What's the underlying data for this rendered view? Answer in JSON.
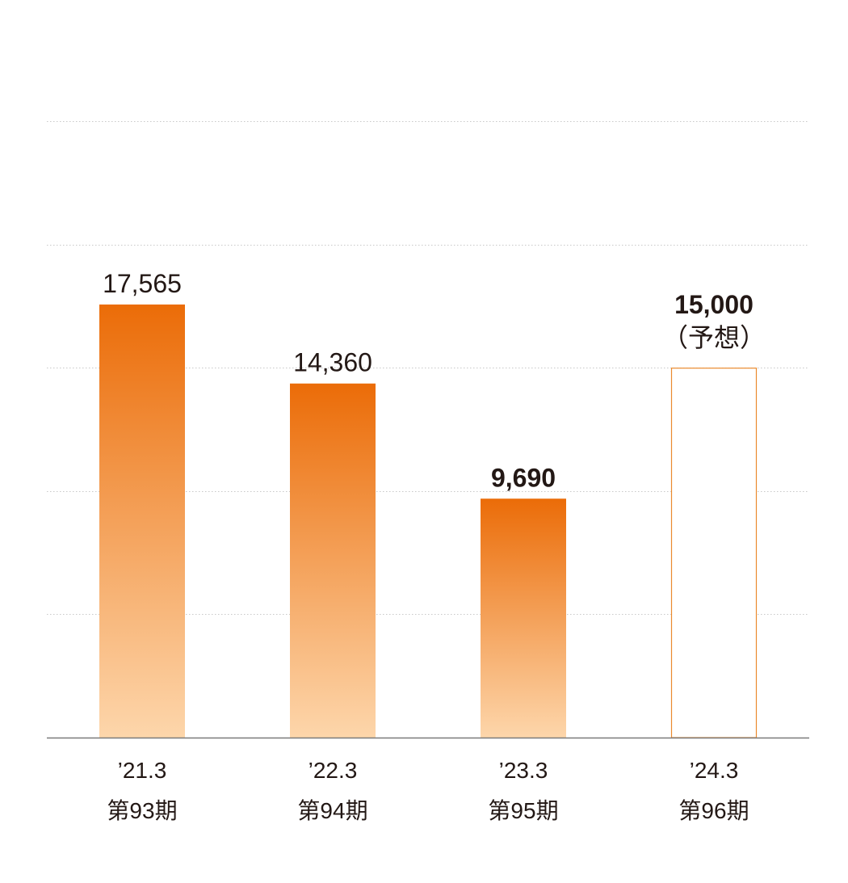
{
  "chart_data": {
    "type": "bar",
    "categories": [
      "’21.3",
      "’22.3",
      "’23.3",
      "’24.3"
    ],
    "subcategories": [
      "第93期",
      "第94期",
      "第95期",
      "第96期"
    ],
    "values": [
      17565,
      14360,
      9690,
      15000
    ],
    "value_labels": [
      "17,565",
      "14,360",
      "9,690",
      "15,000"
    ],
    "forecast_note": "（予想）",
    "forecast": [
      false,
      false,
      false,
      true
    ],
    "bold_labels": [
      false,
      false,
      true,
      true
    ],
    "ylim": [
      0,
      25000
    ],
    "y_gridlines": [
      5000,
      10000,
      15000,
      20000,
      25000
    ],
    "grid": true,
    "title": "",
    "xlabel": "",
    "ylabel": ""
  },
  "colors": {
    "bar_top": "#eb6c08",
    "bar_bottom": "#fdd6ab",
    "forecast_outline": "#eb8a2e",
    "grid": "#c8c8c8",
    "axis": "#7a7a7a",
    "text": "#231815"
  }
}
